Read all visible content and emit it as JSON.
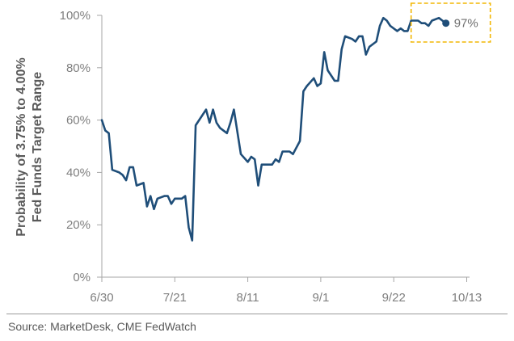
{
  "chart_data": {
    "type": "line",
    "ylabel_line1": "Probability of 3.75% to 4.00%",
    "ylabel_line2": "Fed Funds Target Range",
    "ylim": [
      0,
      100
    ],
    "yticks": [
      0,
      20,
      40,
      60,
      80,
      100
    ],
    "ytick_labels": [
      "0%",
      "20%",
      "40%",
      "60%",
      "80%",
      "100%"
    ],
    "xticks": [
      {
        "label": "6/30",
        "day": 0
      },
      {
        "label": "7/21",
        "day": 21
      },
      {
        "label": "8/11",
        "day": 42
      },
      {
        "label": "9/1",
        "day": 63
      },
      {
        "label": "9/22",
        "day": 84
      },
      {
        "label": "10/13",
        "day": 105
      }
    ],
    "series": [
      {
        "color": "#1f4e79",
        "points": [
          [
            0,
            60
          ],
          [
            1,
            56
          ],
          [
            2,
            55
          ],
          [
            3,
            41
          ],
          [
            5,
            40
          ],
          [
            6,
            39
          ],
          [
            7,
            37
          ],
          [
            8,
            42
          ],
          [
            9,
            42
          ],
          [
            10,
            35
          ],
          [
            12,
            36
          ],
          [
            13,
            27
          ],
          [
            14,
            31
          ],
          [
            15,
            26
          ],
          [
            16,
            30
          ],
          [
            18,
            31
          ],
          [
            19,
            31
          ],
          [
            20,
            28
          ],
          [
            21,
            30
          ],
          [
            23,
            30
          ],
          [
            24,
            31
          ],
          [
            25,
            19
          ],
          [
            26,
            14
          ],
          [
            27,
            58
          ],
          [
            28,
            60
          ],
          [
            29,
            62
          ],
          [
            30,
            64
          ],
          [
            31,
            59
          ],
          [
            32,
            64
          ],
          [
            33,
            59
          ],
          [
            34,
            57
          ],
          [
            36,
            55
          ],
          [
            37,
            59
          ],
          [
            38,
            64
          ],
          [
            40,
            47
          ],
          [
            42,
            44
          ],
          [
            43,
            46
          ],
          [
            44,
            45
          ],
          [
            45,
            35
          ],
          [
            46,
            43
          ],
          [
            48,
            43
          ],
          [
            49,
            43
          ],
          [
            50,
            45
          ],
          [
            51,
            44
          ],
          [
            52,
            48
          ],
          [
            54,
            48
          ],
          [
            55,
            47
          ],
          [
            57,
            52
          ],
          [
            58,
            71
          ],
          [
            59,
            73
          ],
          [
            61,
            76
          ],
          [
            62,
            73
          ],
          [
            63,
            74
          ],
          [
            64,
            86
          ],
          [
            65,
            79
          ],
          [
            67,
            75
          ],
          [
            68,
            75
          ],
          [
            69,
            87
          ],
          [
            70,
            92
          ],
          [
            72,
            91
          ],
          [
            73,
            90
          ],
          [
            74,
            92
          ],
          [
            75,
            92
          ],
          [
            76,
            85
          ],
          [
            77,
            88
          ],
          [
            79,
            90
          ],
          [
            80,
            96
          ],
          [
            81,
            99
          ],
          [
            82,
            98
          ],
          [
            83,
            96
          ],
          [
            85,
            94
          ],
          [
            86,
            95
          ],
          [
            87,
            94
          ],
          [
            88,
            94
          ],
          [
            89,
            98
          ],
          [
            91,
            98
          ],
          [
            92,
            97
          ],
          [
            93,
            97
          ],
          [
            94,
            96
          ],
          [
            95,
            98
          ],
          [
            97,
            99
          ],
          [
            98,
            98
          ],
          [
            99,
            97
          ]
        ]
      }
    ],
    "annotation": {
      "label": "97%",
      "day": 99,
      "value": 97,
      "box": "dashed",
      "box_color": "#f2b705"
    },
    "grid": false
  },
  "source": "Source: MarketDesk, CME FedWatch"
}
